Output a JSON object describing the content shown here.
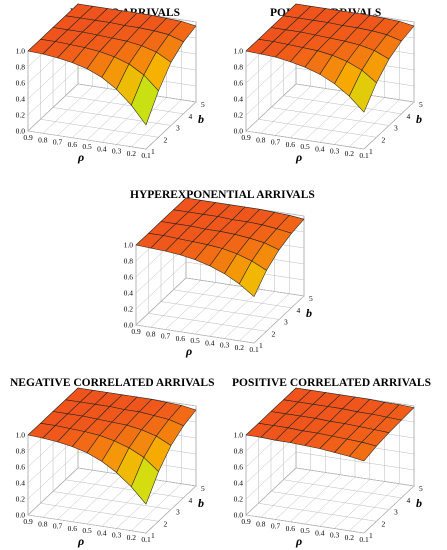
{
  "chart_data": [
    {
      "type": "surface",
      "title": "ERLANG ARRIVALS",
      "xlabel": "ρ",
      "ylabel": "b",
      "rho": [
        0.9,
        0.8,
        0.7,
        0.6,
        0.5,
        0.4,
        0.3,
        0.2,
        0.1
      ],
      "b": [
        1,
        2,
        3,
        4,
        5
      ],
      "zticks": [
        0.0,
        0.2,
        0.4,
        0.6,
        0.8,
        1.0
      ],
      "zlim": [
        0.0,
        1.0
      ],
      "grid": true,
      "z_grid_rows_by_b": [
        [
          1.0,
          0.99,
          0.97,
          0.94,
          0.89,
          0.81,
          0.69,
          0.52,
          0.3
        ],
        [
          1.0,
          1.0,
          0.99,
          0.98,
          0.96,
          0.92,
          0.86,
          0.75,
          0.58
        ],
        [
          1.0,
          1.0,
          1.0,
          0.99,
          0.98,
          0.97,
          0.94,
          0.89,
          0.79
        ],
        [
          1.0,
          1.0,
          1.0,
          1.0,
          0.99,
          0.99,
          0.98,
          0.96,
          0.9
        ],
        [
          1.0,
          1.0,
          1.0,
          1.0,
          1.0,
          1.0,
          0.99,
          0.98,
          0.95
        ]
      ]
    },
    {
      "type": "surface",
      "title": "POISSON ARRIVALS",
      "xlabel": "ρ",
      "ylabel": "b",
      "rho": [
        0.9,
        0.8,
        0.7,
        0.6,
        0.5,
        0.4,
        0.3,
        0.2,
        0.1
      ],
      "b": [
        1,
        2,
        3,
        4,
        5
      ],
      "zticks": [
        0.0,
        0.2,
        0.4,
        0.6,
        0.8,
        1.0
      ],
      "zlim": [
        0.0,
        1.0
      ],
      "grid": true,
      "z_grid_rows_by_b": [
        [
          1.0,
          0.99,
          0.98,
          0.95,
          0.91,
          0.85,
          0.76,
          0.63,
          0.46
        ],
        [
          1.0,
          1.0,
          0.99,
          0.98,
          0.97,
          0.94,
          0.89,
          0.81,
          0.68
        ],
        [
          1.0,
          1.0,
          1.0,
          0.99,
          0.98,
          0.97,
          0.95,
          0.91,
          0.83
        ],
        [
          1.0,
          1.0,
          1.0,
          1.0,
          0.99,
          0.99,
          0.98,
          0.96,
          0.91
        ],
        [
          1.0,
          1.0,
          1.0,
          1.0,
          1.0,
          1.0,
          0.99,
          0.98,
          0.95
        ]
      ]
    },
    {
      "type": "surface",
      "title": "HYPEREXPONENTIAL ARRIVALS",
      "xlabel": "ρ",
      "ylabel": "b",
      "rho": [
        0.9,
        0.8,
        0.7,
        0.6,
        0.5,
        0.4,
        0.3,
        0.2,
        0.1
      ],
      "b": [
        1,
        2,
        3,
        4,
        5
      ],
      "zticks": [
        0.0,
        0.2,
        0.4,
        0.6,
        0.8,
        1.0
      ],
      "zlim": [
        0.0,
        1.0
      ],
      "grid": true,
      "z_grid_rows_by_b": [
        [
          1.0,
          0.99,
          0.98,
          0.96,
          0.93,
          0.88,
          0.81,
          0.71,
          0.58
        ],
        [
          1.0,
          1.0,
          0.99,
          0.98,
          0.97,
          0.95,
          0.91,
          0.85,
          0.76
        ],
        [
          1.0,
          1.0,
          1.0,
          0.99,
          0.99,
          0.98,
          0.96,
          0.93,
          0.87
        ],
        [
          1.0,
          1.0,
          1.0,
          1.0,
          0.99,
          0.99,
          0.98,
          0.96,
          0.93
        ],
        [
          1.0,
          1.0,
          1.0,
          1.0,
          1.0,
          1.0,
          0.99,
          0.98,
          0.96
        ]
      ]
    },
    {
      "type": "surface",
      "title": "NEGATIVE CORRELATED ARRIVALS",
      "xlabel": "ρ",
      "ylabel": "b",
      "rho": [
        0.9,
        0.8,
        0.7,
        0.6,
        0.5,
        0.4,
        0.3,
        0.2,
        0.1
      ],
      "b": [
        1,
        2,
        3,
        4,
        5
      ],
      "zticks": [
        0.0,
        0.2,
        0.4,
        0.6,
        0.8,
        1.0
      ],
      "zlim": [
        0.0,
        1.0
      ],
      "grid": true,
      "z_grid_rows_by_b": [
        [
          1.0,
          0.99,
          0.97,
          0.94,
          0.89,
          0.81,
          0.7,
          0.55,
          0.36
        ],
        [
          1.0,
          1.0,
          0.99,
          0.98,
          0.96,
          0.92,
          0.86,
          0.77,
          0.62
        ],
        [
          1.0,
          1.0,
          1.0,
          0.99,
          0.98,
          0.97,
          0.94,
          0.89,
          0.8
        ],
        [
          1.0,
          1.0,
          1.0,
          1.0,
          0.99,
          0.99,
          0.97,
          0.95,
          0.9
        ],
        [
          1.0,
          1.0,
          1.0,
          1.0,
          1.0,
          1.0,
          0.99,
          0.98,
          0.95
        ]
      ]
    },
    {
      "type": "surface",
      "title": "POSITIVE CORRELATED ARRIVALS",
      "xlabel": "ρ",
      "ylabel": "b",
      "rho": [
        0.9,
        0.8,
        0.7,
        0.6,
        0.5,
        0.4,
        0.3,
        0.2,
        0.1
      ],
      "b": [
        1,
        2,
        3,
        4,
        5
      ],
      "zticks": [
        0.0,
        0.2,
        0.4,
        0.6,
        0.8,
        1.0
      ],
      "zlim": [
        0.0,
        1.0
      ],
      "grid": true,
      "z_grid_rows_by_b": [
        [
          1.0,
          1.0,
          0.99,
          0.99,
          0.98,
          0.97,
          0.95,
          0.93,
          0.9
        ],
        [
          1.0,
          1.0,
          1.0,
          0.99,
          0.99,
          0.98,
          0.97,
          0.96,
          0.94
        ],
        [
          1.0,
          1.0,
          1.0,
          1.0,
          0.99,
          0.99,
          0.98,
          0.97,
          0.96
        ],
        [
          1.0,
          1.0,
          1.0,
          1.0,
          1.0,
          0.99,
          0.99,
          0.98,
          0.97
        ],
        [
          1.0,
          1.0,
          1.0,
          1.0,
          1.0,
          1.0,
          0.99,
          0.99,
          0.98
        ]
      ]
    }
  ],
  "colors": {
    "surface_high": "#f0541c",
    "surface_mid": "#f7b000",
    "surface_low_mid": "#cfe312",
    "surface_low": "#0c9a3c",
    "mesh_line": "#222222",
    "axis_line": "#777777",
    "grid_line": "#bbbbbb"
  }
}
